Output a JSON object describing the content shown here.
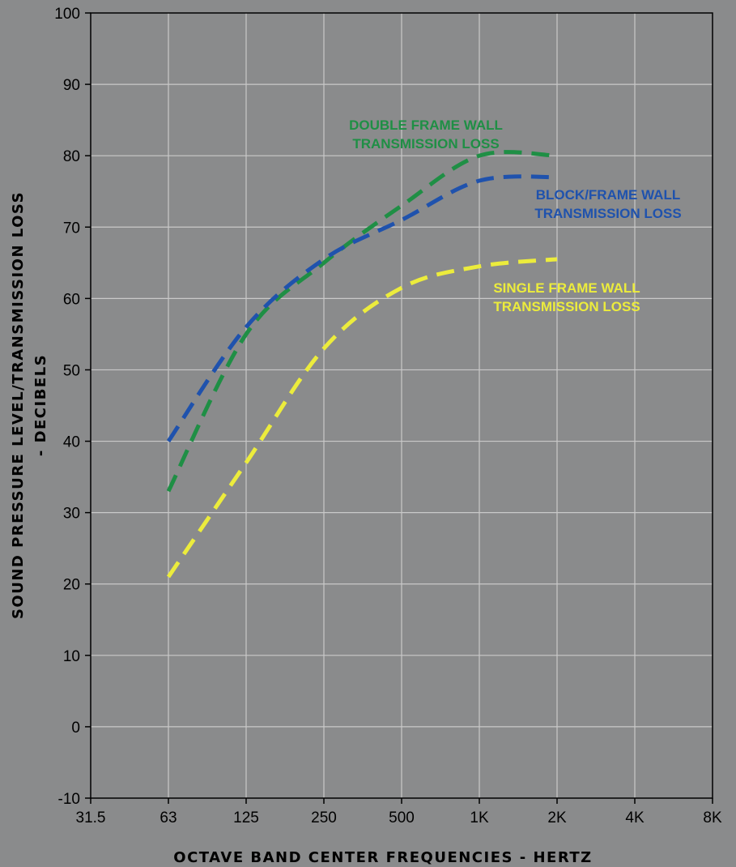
{
  "chart_data": {
    "type": "line",
    "title": "",
    "xlabel": "OCTAVE BAND CENTER FREQUENCIES - HERTZ",
    "ylabel_line1": "SOUND PRESSURE LEVEL/TRANSMISSION LOSS",
    "ylabel_line2": "- DECIBELS",
    "categories": [
      "31.5",
      "63",
      "125",
      "250",
      "500",
      "1K",
      "2K",
      "4K",
      "8K"
    ],
    "y_ticks": [
      -10,
      0,
      10,
      20,
      30,
      40,
      50,
      60,
      70,
      80,
      90,
      100
    ],
    "ylim": [
      -10,
      100
    ],
    "grid": true,
    "series": [
      {
        "name_line1": "DOUBLE FRAME WALL",
        "name_line2": "TRANSMISSION LOSS",
        "color": "#1f8f45",
        "values": [
          null,
          33,
          55,
          65,
          73,
          80,
          80,
          null,
          null
        ]
      },
      {
        "name_line1": "BLOCK/FRAME WALL",
        "name_line2": "TRANSMISSION LOSS",
        "color": "#1f52ad",
        "values": [
          null,
          40,
          56,
          65.5,
          71,
          76.5,
          77,
          null,
          null
        ]
      },
      {
        "name_line1": "SINGLE FRAME  WALL",
        "name_line2": "TRANSMISSION LOSS",
        "color": "#ecec3c",
        "values": [
          null,
          21,
          37,
          53,
          61.5,
          64.5,
          65.5,
          null,
          null
        ]
      }
    ]
  }
}
